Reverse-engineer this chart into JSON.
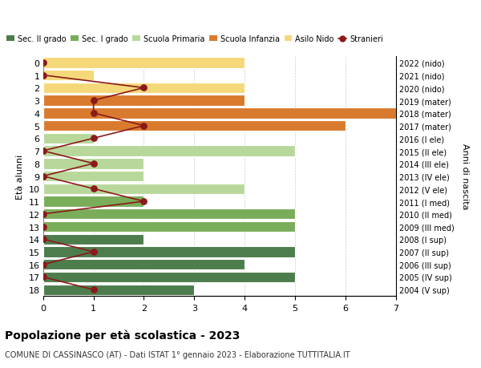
{
  "ages": [
    18,
    17,
    16,
    15,
    14,
    13,
    12,
    11,
    10,
    9,
    8,
    7,
    6,
    5,
    4,
    3,
    2,
    1,
    0
  ],
  "right_labels": [
    "2004 (V sup)",
    "2005 (IV sup)",
    "2006 (III sup)",
    "2007 (II sup)",
    "2008 (I sup)",
    "2009 (III med)",
    "2010 (II med)",
    "2011 (I med)",
    "2012 (V ele)",
    "2013 (IV ele)",
    "2014 (III ele)",
    "2015 (II ele)",
    "2016 (I ele)",
    "2017 (mater)",
    "2018 (mater)",
    "2019 (mater)",
    "2020 (nido)",
    "2021 (nido)",
    "2022 (nido)"
  ],
  "bar_values": [
    3,
    5,
    4,
    5,
    2,
    5,
    5,
    2,
    4,
    2,
    2,
    5,
    1,
    6,
    7,
    4,
    4,
    1,
    4
  ],
  "bar_colors": [
    "#4d7c4d",
    "#4d7c4d",
    "#4d7c4d",
    "#4d7c4d",
    "#4d7c4d",
    "#7aad5a",
    "#7aad5a",
    "#7aad5a",
    "#b8d89b",
    "#b8d89b",
    "#b8d89b",
    "#b8d89b",
    "#b8d89b",
    "#d97b2e",
    "#d97b2e",
    "#d97b2e",
    "#f5d87a",
    "#f5d87a",
    "#f5d87a"
  ],
  "stranieri_values": [
    1,
    0,
    0,
    1,
    0,
    0,
    0,
    2,
    1,
    0,
    1,
    0,
    1,
    2,
    1,
    1,
    2,
    0,
    0
  ],
  "stranieri_color": "#8b1a1a",
  "legend_labels": [
    "Sec. II grado",
    "Sec. I grado",
    "Scuola Primaria",
    "Scuola Infanzia",
    "Asilo Nido",
    "Stranieri"
  ],
  "legend_colors": [
    "#4d7c4d",
    "#7aad5a",
    "#b8d89b",
    "#d97b2e",
    "#f5d87a",
    "#8b1a1a"
  ],
  "title": "Popolazione per età scolastica - 2023",
  "subtitle": "COMUNE DI CASSINASCO (AT) - Dati ISTAT 1° gennaio 2023 - Elaborazione TUTTITALIA.IT",
  "ylabel_left": "Età alunni",
  "ylabel_right": "Anni di nascita",
  "xlim": [
    0,
    7
  ],
  "background_color": "#ffffff",
  "grid_color": "#cccccc"
}
